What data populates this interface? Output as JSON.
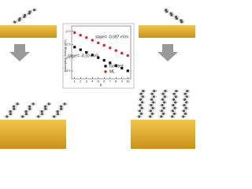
{
  "chart_data": {
    "type": "scatter",
    "y_label": "Adsorption energy (eV)",
    "x_label": "n",
    "x": [
      1,
      2,
      3,
      4,
      5,
      6,
      7,
      8,
      9,
      10
    ],
    "series": [
      {
        "name": "Isolated",
        "color": "#111111",
        "marker": "square",
        "values": [
          -2.6,
          -2.7,
          -2.8,
          -2.9,
          -3.0,
          -3.1,
          -3.2,
          -3.3,
          -3.4,
          -3.5
        ]
      },
      {
        "name": "ML",
        "color": "#e02020",
        "marker": "circle",
        "values": [
          -2.05,
          -2.15,
          -2.24,
          -2.34,
          -2.44,
          -2.53,
          -2.63,
          -2.73,
          -2.83,
          -2.92
        ]
      }
    ],
    "annotations": [
      "slope= -0.097 eV/n",
      "slope= -0.10 eV/n"
    ],
    "xlim": [
      0.5,
      10.5
    ],
    "xticks": [
      1,
      2,
      3,
      4,
      5,
      6,
      7,
      8,
      9,
      10
    ],
    "ylim": [
      -3.8,
      -1.8
    ],
    "yticks": [
      {
        "value": -2,
        "label": "-2.0"
      },
      -2.5,
      {
        "value": -3,
        "label": "-3.0"
      },
      -3.5
    ],
    "legend": "lower right"
  }
}
